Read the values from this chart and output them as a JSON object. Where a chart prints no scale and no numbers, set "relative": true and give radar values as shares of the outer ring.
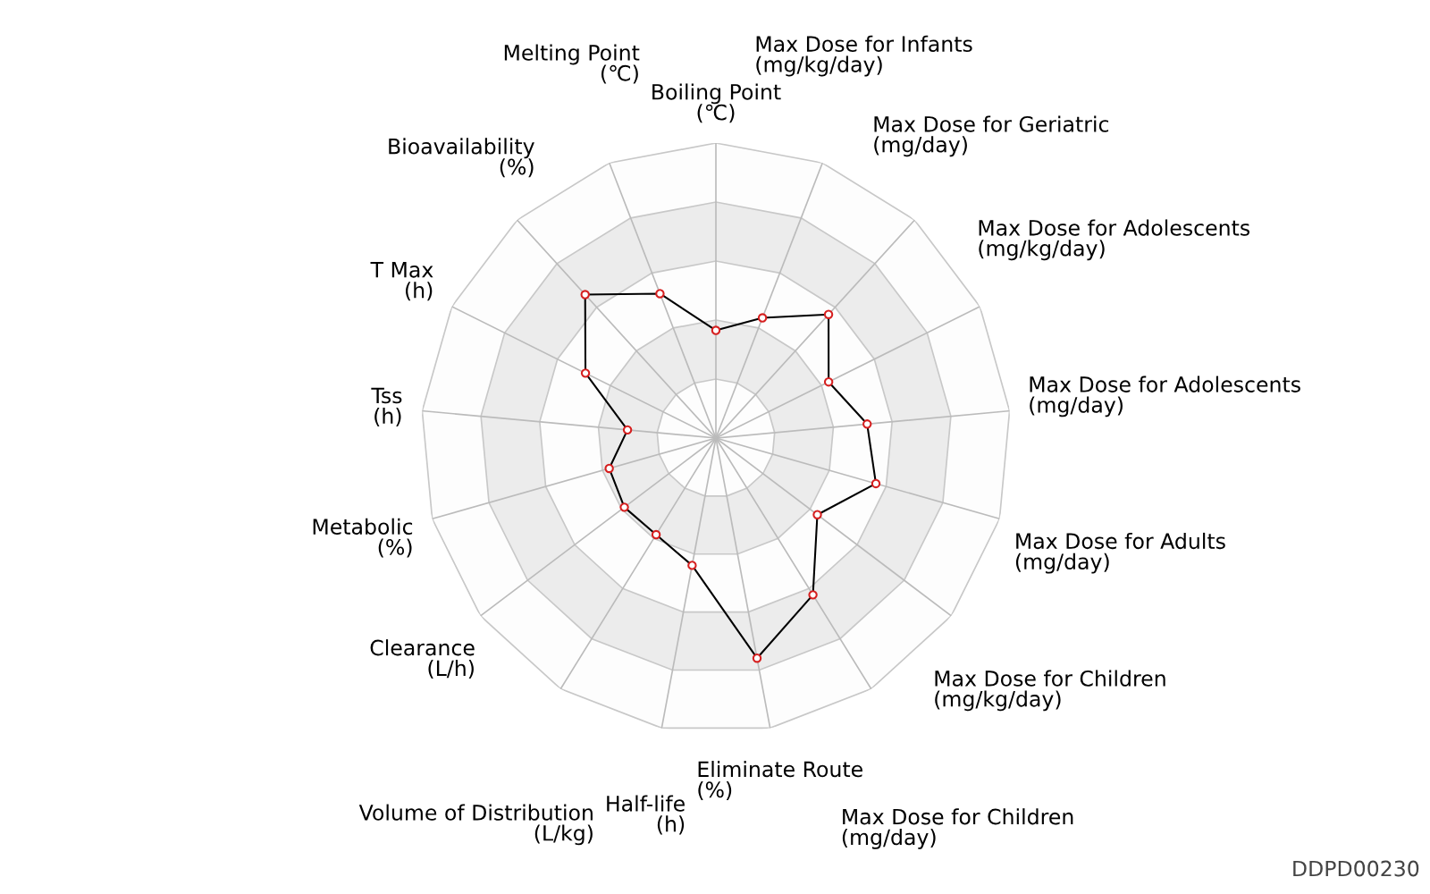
{
  "chart_data": {
    "type": "radar",
    "relative": true,
    "categories": [
      "Boiling Point\n(℃)",
      "Max Dose for Infants\n(mg/kg/day)",
      "Max Dose for Geriatric\n(mg/day)",
      "Max Dose for Adolescents\n(mg/kg/day)",
      "Max Dose for Adolescents\n(mg/day)",
      "Max Dose for Adults\n(mg/day)",
      "Max Dose for Children\n(mg/kg/day)",
      "Max Dose for Children\n(mg/day)",
      "Eliminate Route\n(%)",
      "Half-life\n(h)",
      "Volume of Distribution\n(L/kg)",
      "Clearance\n(L/h)",
      "Metabolic\n(%)",
      "Tss\n(h)",
      "T Max\n(h)",
      "Bioavailability\n(%)",
      "Melting Point\n(℃)"
    ],
    "series": [
      {
        "color": "#000000",
        "values": [
          0.365,
          0.437,
          0.567,
          0.427,
          0.515,
          0.564,
          0.431,
          0.625,
          0.759,
          0.439,
          0.385,
          0.389,
          0.376,
          0.301,
          0.494,
          0.658,
          0.525
        ]
      }
    ],
    "marker": "circle",
    "annotations": [
      "DDPD00230"
    ]
  }
}
